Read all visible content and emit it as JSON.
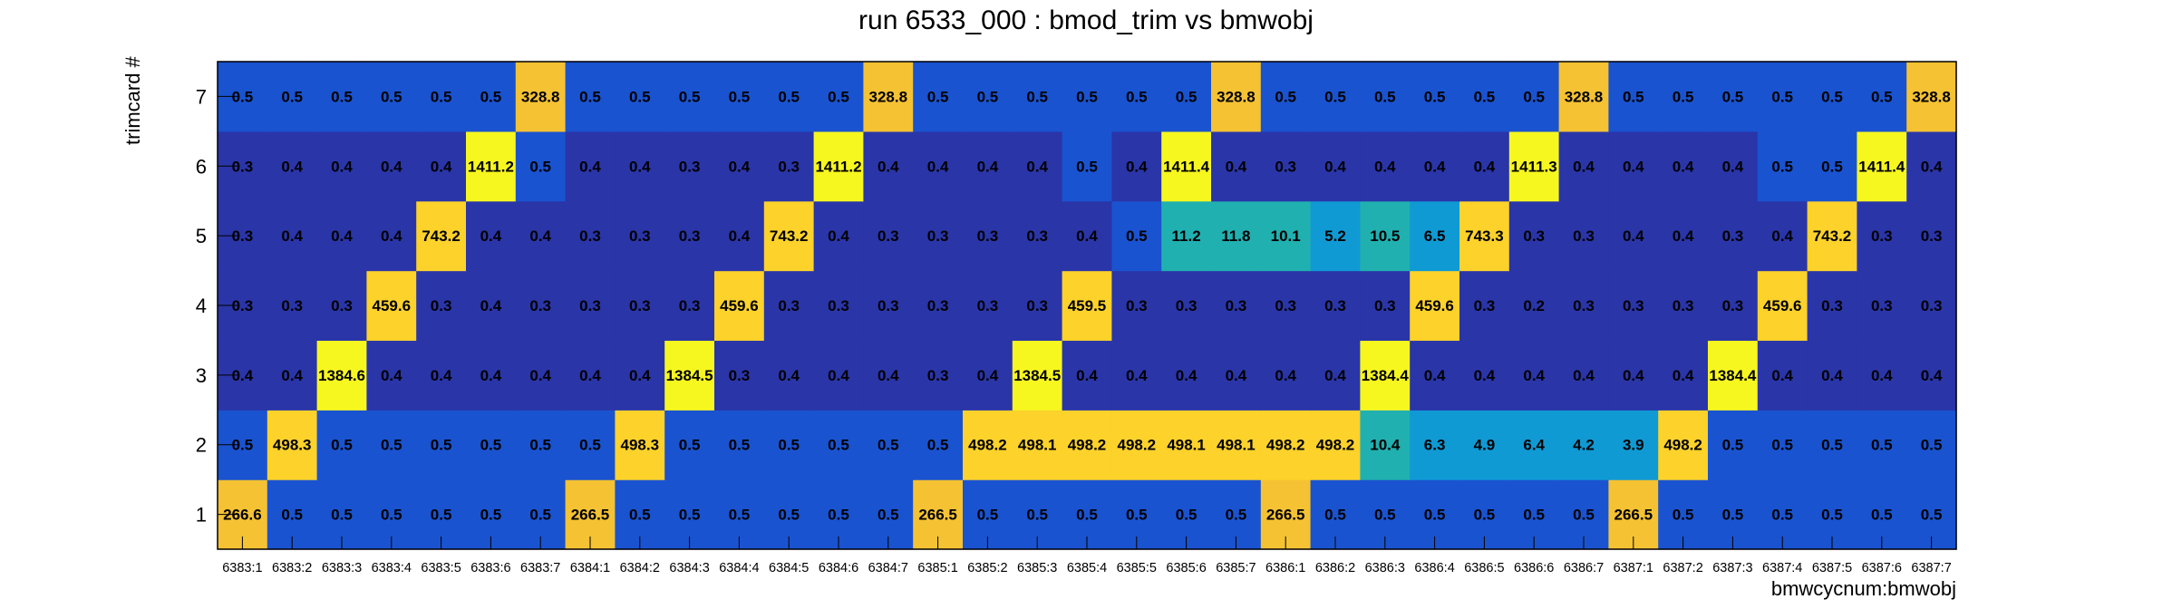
{
  "chart_data": {
    "type": "heatmap",
    "title": "run 6533_000 : bmod_trim vs bmwobj",
    "xlabel": "bmwcycnum:bmwobj",
    "ylabel": "trimcard #",
    "x": [
      "6383:1",
      "6383:2",
      "6383:3",
      "6383:4",
      "6383:5",
      "6383:6",
      "6383:7",
      "6384:1",
      "6384:2",
      "6384:3",
      "6384:4",
      "6384:5",
      "6384:6",
      "6384:7",
      "6385:1",
      "6385:2",
      "6385:3",
      "6385:4",
      "6385:5",
      "6385:6",
      "6385:7",
      "6386:1",
      "6386:2",
      "6386:3",
      "6386:4",
      "6386:5",
      "6386:6",
      "6386:7",
      "6387:1",
      "6387:2",
      "6387:3",
      "6387:4",
      "6387:5",
      "6387:6",
      "6387:7"
    ],
    "y": [
      "1",
      "2",
      "3",
      "4",
      "5",
      "6",
      "7"
    ],
    "values": [
      [
        266.6,
        0.5,
        0.5,
        0.5,
        0.5,
        0.5,
        0.5,
        266.5,
        0.5,
        0.5,
        0.5,
        0.5,
        0.5,
        0.5,
        266.5,
        0.5,
        0.5,
        0.5,
        0.5,
        0.5,
        0.5,
        266.5,
        0.5,
        0.5,
        0.5,
        0.5,
        0.5,
        0.5,
        266.5,
        0.5,
        0.5,
        0.5,
        0.5,
        0.5,
        0.5
      ],
      [
        0.5,
        498.3,
        0.5,
        0.5,
        0.5,
        0.5,
        0.5,
        0.5,
        498.3,
        0.5,
        0.5,
        0.5,
        0.5,
        0.5,
        0.5,
        498.2,
        498.1,
        498.2,
        498.2,
        498.1,
        498.1,
        498.2,
        498.2,
        10.4,
        6.3,
        4.9,
        6.4,
        4.2,
        3.9,
        498.2,
        0.5,
        0.5,
        0.5,
        0.5,
        0.5
      ],
      [
        0.4,
        0.4,
        1384.6,
        0.4,
        0.4,
        0.4,
        0.4,
        0.4,
        0.4,
        1384.5,
        0.3,
        0.4,
        0.4,
        0.4,
        0.3,
        0.4,
        1384.5,
        0.4,
        0.4,
        0.4,
        0.4,
        0.4,
        0.4,
        1384.4,
        0.4,
        0.4,
        0.4,
        0.4,
        0.4,
        0.4,
        1384.4,
        0.4,
        0.4,
        0.4,
        0.4
      ],
      [
        0.3,
        0.3,
        0.3,
        459.6,
        0.3,
        0.4,
        0.3,
        0.3,
        0.3,
        0.3,
        459.6,
        0.3,
        0.3,
        0.3,
        0.3,
        0.3,
        0.3,
        459.5,
        0.3,
        0.3,
        0.3,
        0.3,
        0.3,
        0.3,
        459.6,
        0.3,
        0.2,
        0.3,
        0.3,
        0.3,
        0.3,
        459.6,
        0.3,
        0.3,
        0.3
      ],
      [
        0.3,
        0.4,
        0.4,
        0.4,
        743.2,
        0.4,
        0.4,
        0.3,
        0.3,
        0.3,
        0.4,
        743.2,
        0.4,
        0.3,
        0.3,
        0.3,
        0.3,
        0.4,
        0.5,
        11.2,
        11.8,
        10.1,
        5.2,
        10.5,
        6.5,
        743.3,
        0.3,
        0.3,
        0.4,
        0.4,
        0.3,
        0.4,
        743.2,
        0.3,
        0.3
      ],
      [
        0.3,
        0.4,
        0.4,
        0.4,
        0.4,
        1411.2,
        0.5,
        0.4,
        0.4,
        0.3,
        0.4,
        0.3,
        1411.2,
        0.4,
        0.4,
        0.4,
        0.4,
        0.5,
        0.4,
        1411.4,
        0.4,
        0.3,
        0.4,
        0.4,
        0.4,
        0.4,
        1411.3,
        0.4,
        0.4,
        0.4,
        0.4,
        0.5,
        0.5,
        1411.4,
        0.4
      ],
      [
        0.5,
        0.5,
        0.5,
        0.5,
        0.5,
        0.5,
        328.8,
        0.5,
        0.5,
        0.5,
        0.5,
        0.5,
        0.5,
        328.8,
        0.5,
        0.5,
        0.5,
        0.5,
        0.5,
        0.5,
        328.8,
        0.5,
        0.5,
        0.5,
        0.5,
        0.5,
        0.5,
        328.8,
        0.5,
        0.5,
        0.5,
        0.5,
        0.5,
        0.5,
        328.8
      ]
    ],
    "colors": {
      "low_dark": "#2a35a8",
      "low": "#1a53d0",
      "mid": "#0f9ad4",
      "mid_teal": "#20b0b0",
      "high_orange": "#f5c233",
      "high_gold": "#fcd22b",
      "max_yellow": "#f7f720"
    },
    "grid": false,
    "legend": "none"
  }
}
